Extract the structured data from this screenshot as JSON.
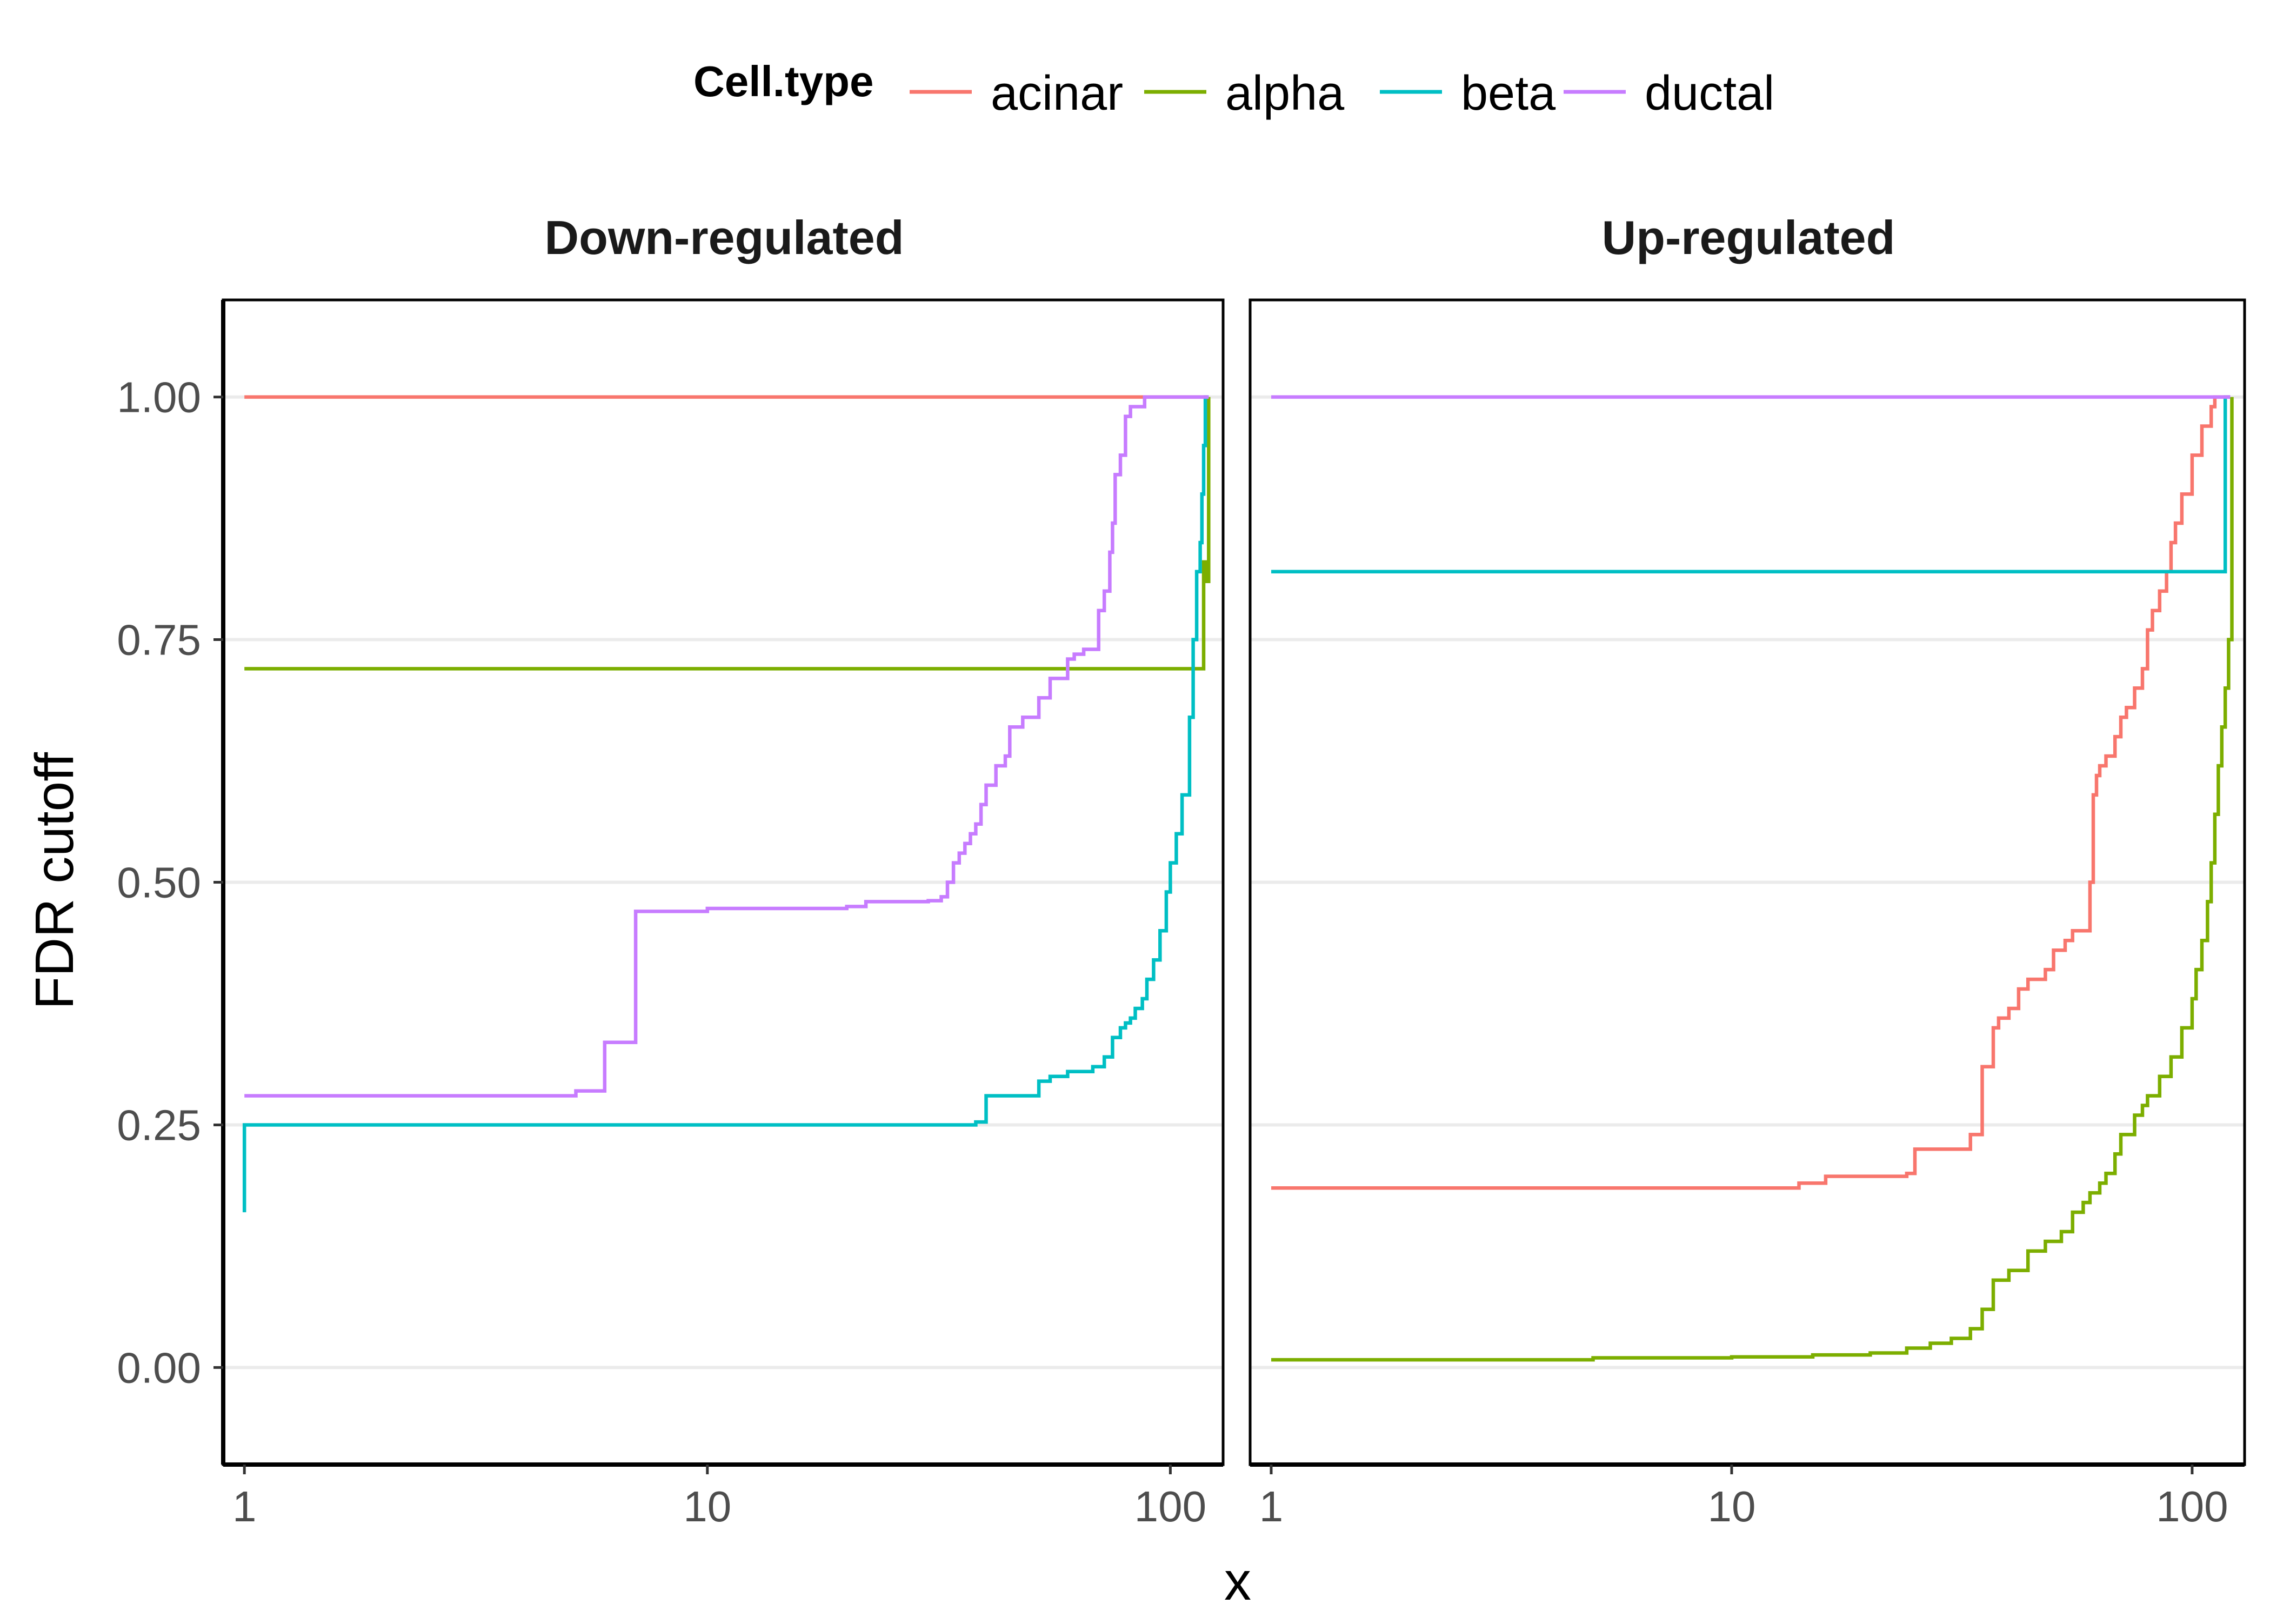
{
  "chart_data": {
    "type": "line",
    "subtype": "step",
    "xlabel": "x",
    "ylabel": "FDR cutoff",
    "x_scale": "log10",
    "xlim": [
      0.9,
      130
    ],
    "ylim": [
      -0.1,
      1.1
    ],
    "x_ticks": [
      1,
      10,
      100
    ],
    "x_tick_labels": [
      "1",
      "10",
      "100"
    ],
    "y_ticks": [
      0,
      0.25,
      0.5,
      0.75,
      1
    ],
    "y_tick_labels": [
      "0.00",
      "0.25",
      "0.50",
      "0.75",
      "1.00"
    ],
    "grid": "horizontal major only",
    "legend": {
      "title": "Cell.type",
      "position": "top",
      "entries": [
        "acinar",
        "alpha",
        "beta",
        "ductal"
      ],
      "colors": [
        "#F8766D",
        "#7CAE00",
        "#00BFC4",
        "#C77CFF"
      ]
    },
    "facets": [
      {
        "title": "Down-regulated",
        "series": [
          {
            "name": "acinar",
            "x": [
              1,
              120
            ],
            "y": [
              1.0,
              1.0
            ]
          },
          {
            "name": "alpha",
            "x": [
              1,
              118,
              118,
              120,
              120,
              121
            ],
            "y": [
              0.72,
              0.72,
              0.83,
              0.83,
              0.81,
              1.0
            ]
          },
          {
            "name": "beta",
            "x": [
              1,
              1,
              33,
              38,
              40,
              48,
              52,
              55,
              60,
              68,
              72,
              75,
              78,
              80,
              82,
              84,
              87,
              89,
              92,
              95,
              98,
              100,
              103,
              106,
              108,
              110,
              112,
              114,
              116,
              117,
              118,
              119,
              120,
              121
            ],
            "y": [
              0.16,
              0.25,
              0.25,
              0.253,
              0.28,
              0.28,
              0.295,
              0.3,
              0.305,
              0.31,
              0.32,
              0.34,
              0.35,
              0.355,
              0.36,
              0.37,
              0.38,
              0.4,
              0.42,
              0.45,
              0.49,
              0.52,
              0.55,
              0.59,
              0.59,
              0.67,
              0.75,
              0.82,
              0.85,
              0.9,
              0.95,
              1.0,
              1.0,
              1.0
            ]
          },
          {
            "name": "ductal",
            "x": [
              1,
              5.2,
              6,
              7,
              10,
              20,
              22,
              30,
              32,
              33,
              34,
              35,
              36,
              37,
              38,
              39,
              40,
              42,
              44,
              45,
              48,
              52,
              55,
              60,
              62,
              65,
              70,
              72,
              74,
              75,
              76,
              78,
              80,
              82,
              85,
              88,
              100,
              121
            ],
            "y": [
              0.28,
              0.285,
              0.335,
              0.47,
              0.473,
              0.475,
              0.48,
              0.481,
              0.485,
              0.5,
              0.52,
              0.53,
              0.54,
              0.55,
              0.56,
              0.58,
              0.6,
              0.62,
              0.63,
              0.66,
              0.67,
              0.69,
              0.71,
              0.73,
              0.735,
              0.74,
              0.78,
              0.8,
              0.84,
              0.87,
              0.92,
              0.94,
              0.98,
              0.99,
              0.99,
              1.0,
              1.0,
              1.0
            ]
          }
        ]
      },
      {
        "title": "Up-regulated",
        "series": [
          {
            "name": "acinar",
            "x": [
              1,
              14,
              16,
              24,
              25,
              33,
              35,
              37,
              38,
              40,
              42,
              44,
              48,
              50,
              53,
              55,
              60,
              61,
              62,
              63,
              65,
              68,
              70,
              72,
              75,
              78,
              80,
              82,
              85,
              88,
              90,
              92,
              95,
              100,
              105,
              110,
              112,
              115,
              121
            ],
            "y": [
              0.185,
              0.19,
              0.197,
              0.2,
              0.225,
              0.24,
              0.31,
              0.35,
              0.36,
              0.37,
              0.39,
              0.4,
              0.41,
              0.43,
              0.44,
              0.45,
              0.5,
              0.59,
              0.61,
              0.62,
              0.63,
              0.65,
              0.67,
              0.68,
              0.7,
              0.72,
              0.76,
              0.78,
              0.8,
              0.82,
              0.85,
              0.87,
              0.9,
              0.94,
              0.97,
              0.99,
              1.0,
              1.0,
              1.0
            ]
          },
          {
            "name": "alpha",
            "x": [
              1,
              5,
              10,
              15,
              20,
              24,
              27,
              30,
              33,
              35,
              37,
              38,
              40,
              44,
              48,
              52,
              55,
              58,
              60,
              63,
              65,
              68,
              70,
              75,
              78,
              80,
              85,
              90,
              95,
              100,
              102,
              105,
              108,
              110,
              112,
              114,
              116,
              118,
              120,
              122
            ],
            "y": [
              0.008,
              0.01,
              0.011,
              0.013,
              0.015,
              0.02,
              0.025,
              0.03,
              0.04,
              0.06,
              0.09,
              0.09,
              0.1,
              0.12,
              0.13,
              0.14,
              0.16,
              0.17,
              0.18,
              0.19,
              0.2,
              0.22,
              0.24,
              0.26,
              0.27,
              0.28,
              0.3,
              0.32,
              0.35,
              0.38,
              0.41,
              0.44,
              0.48,
              0.52,
              0.57,
              0.62,
              0.66,
              0.7,
              0.75,
              1.0
            ]
          },
          {
            "name": "beta",
            "x": [
              1,
              118,
              118,
              121
            ],
            "y": [
              0.82,
              0.82,
              1.0,
              1.0
            ]
          },
          {
            "name": "ductal",
            "x": [
              1,
              121
            ],
            "y": [
              1.0,
              1.0
            ]
          }
        ]
      }
    ]
  }
}
